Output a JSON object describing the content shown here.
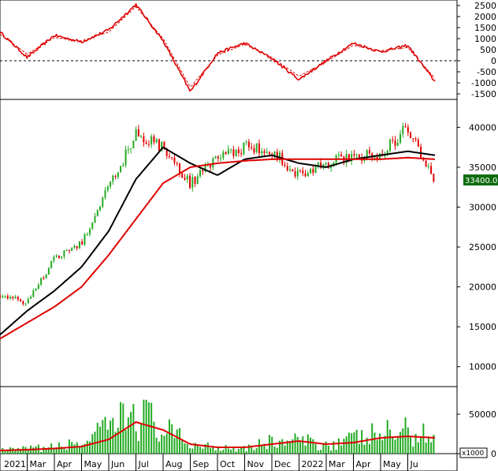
{
  "chart_data": [
    {
      "type": "line",
      "panel": "oscillator",
      "y_ticks": [
        "2500",
        "2000",
        "1500",
        "1000",
        "500",
        "0",
        "-500",
        "-1000",
        "-1500"
      ],
      "ylim": [
        -1750,
        2750
      ],
      "reference_line": 0,
      "x": [
        "2021-01",
        "2021-02",
        "2021-03",
        "2021-04",
        "2021-05",
        "2021-06",
        "2021-07",
        "2021-08",
        "2021-09",
        "2021-10",
        "2021-11",
        "2021-12",
        "2022-01",
        "2022-02",
        "2022-03",
        "2022-04",
        "2022-05"
      ],
      "series": [
        {
          "values": [
            1300,
            150,
            1150,
            850,
            1400,
            2550,
            900,
            -1400,
            350,
            800,
            100,
            -850,
            0,
            800,
            400,
            700,
            -950
          ],
          "color": "#e00000",
          "style": "solid"
        },
        {
          "values": [
            1200,
            300,
            1050,
            900,
            1300,
            2450,
            1000,
            -1200,
            250,
            750,
            150,
            -700,
            -50,
            700,
            450,
            600,
            -800
          ],
          "color": "#e00000",
          "style": "dashed"
        }
      ]
    },
    {
      "type": "candlestick",
      "panel": "price",
      "y_ticks": [
        "40000",
        "35000",
        "30000",
        "25000",
        "20000",
        "15000",
        "10000"
      ],
      "ylim": [
        7500,
        43500
      ],
      "last_price_label": "33400.00",
      "up_color": "#22aa22",
      "down_color": "#e00000",
      "x": [
        "2021-01",
        "2021-02",
        "2021-03",
        "2021-04",
        "2021-05",
        "2021-06",
        "2021-07",
        "2021-08",
        "2021-09",
        "2021-10",
        "2021-11",
        "2021-12",
        "2022-01",
        "2022-02",
        "2022-03",
        "2022-04",
        "2022-05"
      ],
      "close": [
        19000,
        18000,
        23500,
        25500,
        32500,
        39000,
        37500,
        33000,
        36000,
        37500,
        37000,
        34000,
        35500,
        36500,
        36500,
        40000,
        33400
      ],
      "series": [
        {
          "values": [
            14000,
            17000,
            19500,
            22500,
            27000,
            33500,
            37500,
            35500,
            34000,
            36000,
            36500,
            35500,
            35000,
            36000,
            36500,
            37000,
            36500
          ],
          "color": "#000000"
        },
        {
          "values": [
            13500,
            15500,
            17500,
            20000,
            24000,
            28500,
            33000,
            35000,
            35500,
            35800,
            36000,
            36000,
            36000,
            36000,
            36000,
            36200,
            36000
          ],
          "color": "#e00000"
        }
      ]
    },
    {
      "type": "bar",
      "panel": "volume",
      "unit_label": "x1000",
      "y_ticks": [
        "50000",
        "0"
      ],
      "ylim": [
        0,
        85000
      ],
      "bar_color": "#22aa22",
      "x": [
        "2021-01",
        "2021-02",
        "2021-03",
        "2021-04",
        "2021-05",
        "2021-06",
        "2021-07",
        "2021-08",
        "2021-09",
        "2021-10",
        "2021-11",
        "2021-12",
        "2022-01",
        "2022-02",
        "2022-03",
        "2022-04",
        "2022-05"
      ],
      "volume": [
        4000,
        6000,
        8000,
        14000,
        30000,
        55000,
        30000,
        12000,
        9000,
        8000,
        15000,
        16000,
        12000,
        18000,
        25000,
        28000,
        22000
      ],
      "ma_values": [
        4000,
        5000,
        6500,
        9000,
        18000,
        40000,
        30000,
        12000,
        8000,
        8000,
        12000,
        16000,
        12000,
        14000,
        20000,
        22000,
        20000
      ],
      "ma_color": "#e00000"
    }
  ],
  "x_axis": {
    "labels": [
      "2021",
      "Mar",
      "Apr",
      "May",
      "Jun",
      "Jul",
      "Aug",
      "Sep",
      "Oct",
      "Nov",
      "Dec",
      "2022",
      "Mar",
      "Apr",
      "May",
      "Ju"
    ]
  }
}
